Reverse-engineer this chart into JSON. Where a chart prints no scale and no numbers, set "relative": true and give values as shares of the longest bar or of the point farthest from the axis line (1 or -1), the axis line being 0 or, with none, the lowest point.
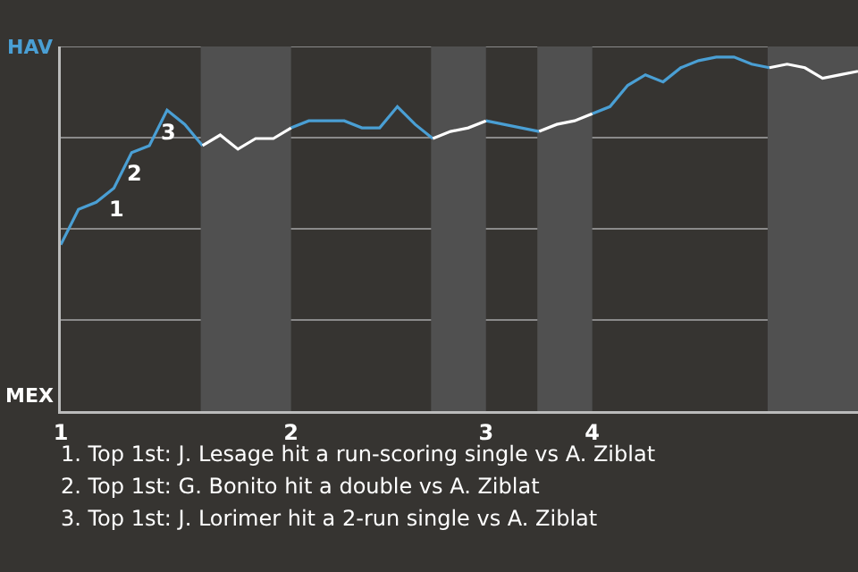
{
  "chart_data": {
    "type": "line",
    "relative": true,
    "categories": [
      "1",
      null,
      null,
      null,
      null,
      null,
      null,
      null,
      null,
      null,
      null,
      null,
      null,
      "2",
      null,
      null,
      null,
      null,
      null,
      null,
      null,
      null,
      null,
      null,
      "3",
      null,
      null,
      null,
      null,
      null,
      "4",
      null,
      null,
      null,
      null,
      null,
      null,
      null,
      null,
      null,
      null,
      null,
      null,
      null,
      null,
      null
    ],
    "series": [
      {
        "color": "#4a9fd4",
        "values": [
          0.47,
          0.57,
          0.59,
          0.63,
          0.73,
          0.75,
          0.85,
          0.81,
          0.75,
          null,
          null,
          null,
          null,
          0.8,
          0.82,
          0.82,
          0.82,
          0.8,
          0.8,
          0.86,
          0.81,
          0.77,
          null,
          null,
          0.82,
          0.81,
          0.8,
          0.79,
          null,
          null,
          0.84,
          0.86,
          0.92,
          0.95,
          0.93,
          0.97,
          0.99,
          1,
          1,
          0.98,
          0.97,
          null,
          null,
          null,
          null,
          null
        ]
      },
      {
        "color": "#ffffff",
        "values": [
          null,
          null,
          null,
          null,
          null,
          null,
          null,
          null,
          0.75,
          0.78,
          0.74,
          0.77,
          0.77,
          0.8,
          null,
          null,
          null,
          null,
          null,
          null,
          null,
          0.77,
          0.79,
          0.8,
          0.82,
          null,
          null,
          0.79,
          0.81,
          0.82,
          0.84,
          null,
          null,
          null,
          null,
          null,
          null,
          null,
          null,
          null,
          0.97,
          0.98,
          0.97,
          0.94,
          0.95,
          0.96
        ]
      }
    ],
    "grid": "y",
    "line_style": "solid",
    "annotations": [
      "HAV",
      "MEX",
      {
        "text": "1",
        "y": 0.63
      },
      {
        "text": "2",
        "y": 0.73
      },
      {
        "text": "3",
        "y": 0.85
      },
      "1. Top 1st: J. Lesage hit a run-scoring single vs A. Ziblat",
      "2. Top 1st: G. Bonito hit a double vs A. Ziblat",
      "3. Top 1st: J. Lorimer hit a 2-run single vs A. Ziblat"
    ]
  }
}
